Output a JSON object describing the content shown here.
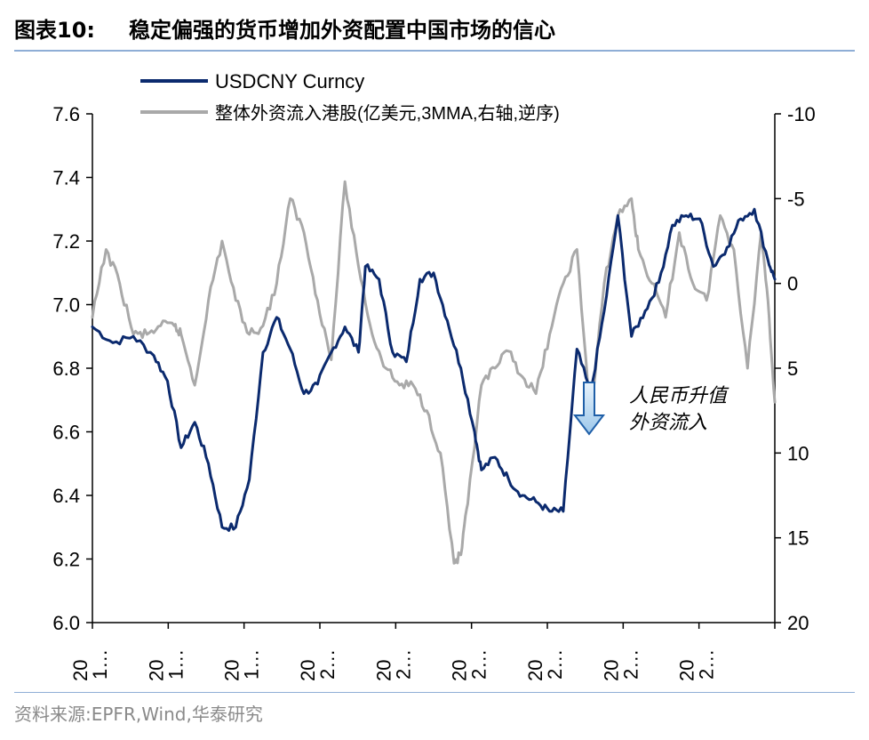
{
  "title": {
    "label": "图表10:",
    "text": "稳定偏强的货币增加外资配置中国市场的信心"
  },
  "source": "资料来源:EPFR,Wind,华泰研究",
  "chart_data": {
    "type": "line",
    "legend": [
      {
        "name": "USDCNY Curncy",
        "color": "#0b2a6e"
      },
      {
        "name": "整体外资流入港股(亿美元,3MMA,右轴,逆序)",
        "color": "#a9a9a9"
      }
    ],
    "left_axis": {
      "min": 6.0,
      "max": 7.6,
      "ticks": [
        "6.0",
        "6.2",
        "6.4",
        "6.6",
        "6.8",
        "7.0",
        "7.2",
        "7.4",
        "7.6"
      ]
    },
    "right_axis": {
      "min": -10,
      "max": 20,
      "reversed": true,
      "ticks": [
        "-10",
        "-5",
        "0",
        "5",
        "10",
        "15",
        "20"
      ]
    },
    "x_tick_labels": [
      "20\n1…",
      "20\n1…",
      "20\n1…",
      "20\n2…",
      "20\n2…",
      "20\n2…",
      "20\n2…",
      "20\n2…",
      "20\n2…"
    ],
    "annotation": {
      "line1": "人民币升值",
      "line2": "外资流入"
    },
    "series": [
      {
        "name": "USDCNY Curncy",
        "axis": "left",
        "color": "#0b2a6e",
        "x": [
          0,
          0.03,
          0.06,
          0.09,
          0.11,
          0.13,
          0.15,
          0.17,
          0.19,
          0.21,
          0.23,
          0.25,
          0.27,
          0.29,
          0.31,
          0.33,
          0.35,
          0.37,
          0.39,
          0.4,
          0.42,
          0.44,
          0.46,
          0.48,
          0.5,
          0.52,
          0.54,
          0.56,
          0.57,
          0.59,
          0.61,
          0.63,
          0.65,
          0.67,
          0.69,
          0.71,
          0.73,
          0.75,
          0.77,
          0.79,
          0.81,
          0.83,
          0.85,
          0.87,
          0.89,
          0.91,
          0.93,
          0.95,
          0.97,
          0.99,
          1
        ],
        "values": [
          6.93,
          6.88,
          6.9,
          6.84,
          6.76,
          6.55,
          6.63,
          6.5,
          6.3,
          6.3,
          6.45,
          6.85,
          6.96,
          6.86,
          6.72,
          6.75,
          6.85,
          6.93,
          6.85,
          7.12,
          7.08,
          6.85,
          6.82,
          7.08,
          7.1,
          6.95,
          6.8,
          6.6,
          6.48,
          6.52,
          6.45,
          6.4,
          6.38,
          6.35,
          6.35,
          6.86,
          6.72,
          6.98,
          7.28,
          6.9,
          6.98,
          7.07,
          7.25,
          7.28,
          7.27,
          7.12,
          7.18,
          7.27,
          7.3,
          7.14,
          7.08
        ]
      },
      {
        "name": "整体外资流入港股(亿美元,3MMA,右轴,逆序)",
        "axis": "right",
        "color": "#a9a9a9",
        "x": [
          0,
          0.02,
          0.04,
          0.06,
          0.08,
          0.1,
          0.12,
          0.13,
          0.15,
          0.17,
          0.19,
          0.21,
          0.23,
          0.25,
          0.27,
          0.29,
          0.31,
          0.33,
          0.35,
          0.37,
          0.39,
          0.41,
          0.43,
          0.45,
          0.47,
          0.49,
          0.51,
          0.53,
          0.54,
          0.55,
          0.57,
          0.59,
          0.61,
          0.63,
          0.65,
          0.67,
          0.69,
          0.71,
          0.73,
          0.75,
          0.77,
          0.79,
          0.8,
          0.82,
          0.84,
          0.86,
          0.88,
          0.9,
          0.92,
          0.94,
          0.96,
          0.98,
          0.99,
          1
        ],
        "values": [
          2,
          -2,
          0,
          3,
          3,
          2.5,
          2.5,
          3,
          6,
          1,
          -2.5,
          1,
          3,
          2.5,
          0,
          -5,
          -3,
          1,
          4.5,
          -6,
          -1,
          3,
          5,
          6,
          6,
          7.5,
          10,
          16.5,
          16,
          13,
          6,
          5,
          4,
          5.5,
          6.5,
          3,
          0,
          -2,
          8,
          0,
          -4,
          -5,
          -2,
          0,
          2,
          -3,
          0,
          1,
          -4,
          -2,
          5,
          -3,
          1,
          7
        ]
      }
    ]
  }
}
